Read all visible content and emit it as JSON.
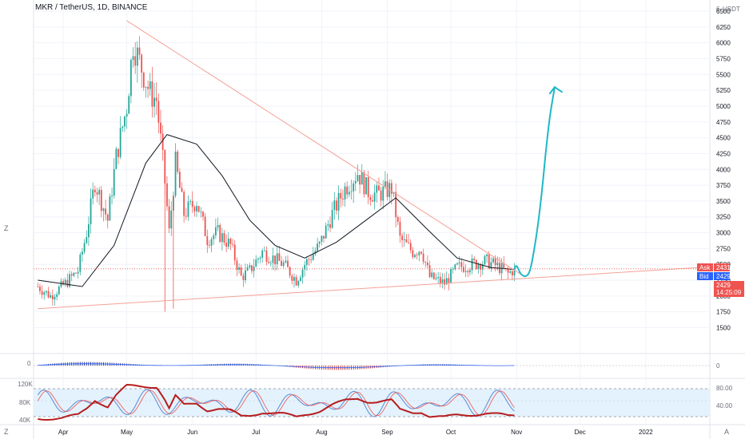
{
  "header": {
    "title": "MKR / TetherUS, 1D, BINANCE"
  },
  "price_axis": {
    "currency": "USDT",
    "top_label": "6",
    "labels": [
      "6500",
      "6250",
      "6000",
      "5750",
      "5500",
      "5250",
      "5000",
      "4750",
      "4500",
      "4250",
      "4000",
      "3750",
      "3500",
      "3250",
      "3000",
      "2750",
      "2500",
      "2250",
      "2000",
      "1750",
      "1500"
    ],
    "ask_label": "Ask",
    "ask_value": "2431",
    "bid_label": "Bid",
    "bid_value": "2429",
    "last_value": "2429",
    "countdown": "14:25:09"
  },
  "pane2": {
    "axis_label": "0",
    "left_label": "0"
  },
  "pane3": {
    "left_labels": [
      "120K",
      "80K",
      "40K"
    ],
    "right_labels": [
      "80.00",
      "40.00"
    ]
  },
  "time_axis": {
    "labels": [
      "Apr",
      "May",
      "Jun",
      "Jul",
      "Aug",
      "Sep",
      "Oct",
      "Nov",
      "Dec",
      "2022"
    ]
  },
  "corner": {
    "left": "Z",
    "right": "A"
  },
  "colors": {
    "up": "#26a69a",
    "down": "#ef5350",
    "trendline": "#f4a196",
    "ma": "#131722",
    "drawing": "#1fb8c6",
    "ask": "#ef5350",
    "bid": "#2962ff",
    "stoch_k": "#5b8ad6",
    "stoch_d": "#ef5350",
    "volume_line": "#b71c1c"
  },
  "chart_data": {
    "type": "candlestick",
    "symbol": "MKR / TetherUS",
    "interval": "1D",
    "exchange": "BINANCE",
    "ylim": [
      1250,
      6600
    ],
    "x_range": [
      "2021-03-18",
      "2022-01-31"
    ],
    "last_price": 2429,
    "ask": 2431,
    "bid": 2429,
    "price_path": [
      [
        "2021-03-20",
        2150
      ],
      [
        "2021-03-26",
        2000
      ],
      [
        "2021-04-02",
        2200
      ],
      [
        "2021-04-08",
        2400
      ],
      [
        "2021-04-12",
        3000
      ],
      [
        "2021-04-16",
        3800
      ],
      [
        "2021-04-22",
        3200
      ],
      [
        "2021-04-26",
        4200
      ],
      [
        "2021-05-01",
        5000
      ],
      [
        "2021-05-04",
        6000
      ],
      [
        "2021-05-08",
        5600
      ],
      [
        "2021-05-12",
        5200
      ],
      [
        "2021-05-15",
        5100
      ],
      [
        "2021-05-19",
        3800
      ],
      [
        "2021-05-21",
        3000
      ],
      [
        "2021-05-24",
        4100
      ],
      [
        "2021-05-28",
        3300
      ],
      [
        "2021-06-03",
        3500
      ],
      [
        "2021-06-08",
        2900
      ],
      [
        "2021-06-13",
        3000
      ],
      [
        "2021-06-19",
        2800
      ],
      [
        "2021-06-24",
        2300
      ],
      [
        "2021-06-28",
        2400
      ],
      [
        "2021-07-04",
        2700
      ],
      [
        "2021-07-09",
        2600
      ],
      [
        "2021-07-14",
        2500
      ],
      [
        "2021-07-20",
        2250
      ],
      [
        "2021-07-24",
        2500
      ],
      [
        "2021-07-31",
        2800
      ],
      [
        "2021-08-06",
        3300
      ],
      [
        "2021-08-12",
        3700
      ],
      [
        "2021-08-18",
        3950
      ],
      [
        "2021-08-23",
        3650
      ],
      [
        "2021-08-27",
        3600
      ],
      [
        "2021-09-03",
        3700
      ],
      [
        "2021-09-07",
        2900
      ],
      [
        "2021-09-13",
        2700
      ],
      [
        "2021-09-17",
        2750
      ],
      [
        "2021-09-21",
        2300
      ],
      [
        "2021-09-28",
        2200
      ],
      [
        "2021-10-04",
        2450
      ],
      [
        "2021-10-11",
        2500
      ],
      [
        "2021-10-18",
        2550
      ],
      [
        "2021-10-24",
        2450
      ],
      [
        "2021-10-28",
        2350
      ],
      [
        "2021-10-31",
        2429
      ]
    ],
    "moving_average": [
      [
        "2021-03-20",
        2250
      ],
      [
        "2021-04-10",
        2150
      ],
      [
        "2021-04-25",
        2800
      ],
      [
        "2021-05-10",
        4100
      ],
      [
        "2021-05-20",
        4550
      ],
      [
        "2021-06-03",
        4400
      ],
      [
        "2021-06-15",
        3900
      ],
      [
        "2021-06-28",
        3200
      ],
      [
        "2021-07-10",
        2800
      ],
      [
        "2021-07-24",
        2600
      ],
      [
        "2021-08-08",
        2850
      ],
      [
        "2021-08-22",
        3200
      ],
      [
        "2021-09-05",
        3550
      ],
      [
        "2021-09-20",
        3050
      ],
      [
        "2021-10-04",
        2600
      ],
      [
        "2021-10-20",
        2450
      ],
      [
        "2021-10-31",
        2420
      ]
    ],
    "trendline_upper": [
      [
        "2021-05-01",
        6350
      ],
      [
        "2021-11-05",
        2300
      ]
    ],
    "trendline_lower": [
      [
        "2021-03-20",
        1800
      ],
      [
        "2022-01-31",
        2460
      ]
    ],
    "projection_drawing": [
      [
        "2021-10-31",
        2430
      ],
      [
        "2021-11-01",
        2500
      ],
      [
        "2021-11-03",
        2330
      ],
      [
        "2021-11-06",
        2300
      ],
      [
        "2021-11-08",
        2450
      ],
      [
        "2021-11-12",
        3300
      ],
      [
        "2021-11-16",
        4700
      ],
      [
        "2021-11-19",
        5300
      ]
    ]
  }
}
